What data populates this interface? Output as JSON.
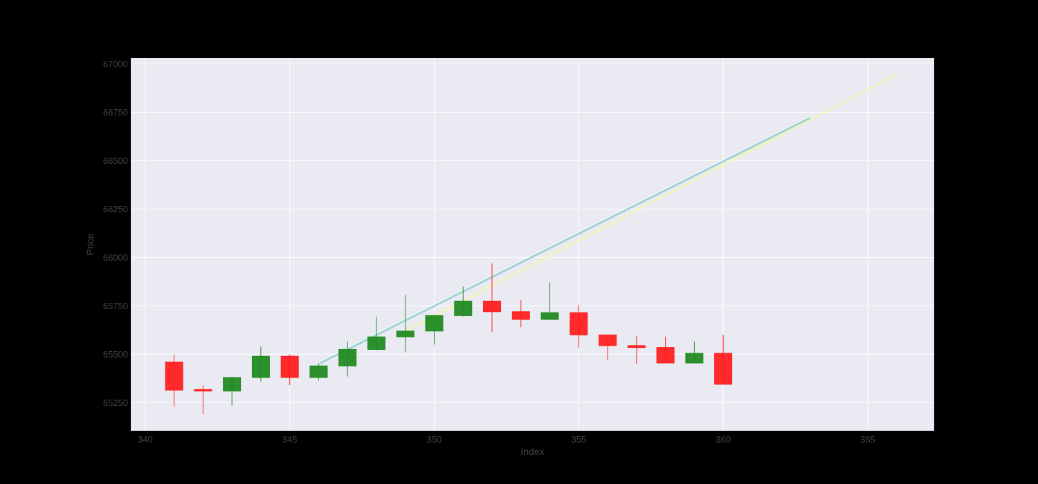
{
  "chart_data": {
    "type": "candlestick",
    "xlabel": "Index",
    "ylabel": "Price",
    "xlim": [
      339.5,
      367.3
    ],
    "ylim": [
      65105,
      67030
    ],
    "x_ticks": [
      340,
      345,
      350,
      355,
      360,
      365
    ],
    "y_ticks": [
      65250,
      65500,
      65750,
      66000,
      66250,
      66500,
      66750,
      67000
    ],
    "grid": true,
    "colors": {
      "page_bg": "#000000",
      "plot_bg": "#eaeaf2",
      "grid": "#ffffff",
      "increasing": "#228b22",
      "decreasing": "#ff2020",
      "line_cyan": "#7fd1cc",
      "line_yellow": "#f6f6a6"
    },
    "candles": [
      {
        "x": 341,
        "open": 65460,
        "high": 65500,
        "low": 65230,
        "close": 65315
      },
      {
        "x": 342,
        "open": 65318,
        "high": 65340,
        "low": 65190,
        "close": 65310
      },
      {
        "x": 343,
        "open": 65310,
        "high": 65385,
        "low": 65235,
        "close": 65380
      },
      {
        "x": 344,
        "open": 65380,
        "high": 65540,
        "low": 65360,
        "close": 65490
      },
      {
        "x": 345,
        "open": 65490,
        "high": 65500,
        "low": 65340,
        "close": 65380
      },
      {
        "x": 346,
        "open": 65380,
        "high": 65450,
        "low": 65365,
        "close": 65440
      },
      {
        "x": 347,
        "open": 65440,
        "high": 65565,
        "low": 65385,
        "close": 65525
      },
      {
        "x": 348,
        "open": 65525,
        "high": 65695,
        "low": 65520,
        "close": 65590
      },
      {
        "x": 349,
        "open": 65590,
        "high": 65805,
        "low": 65510,
        "close": 65620
      },
      {
        "x": 350,
        "open": 65620,
        "high": 65705,
        "low": 65550,
        "close": 65700
      },
      {
        "x": 351,
        "open": 65700,
        "high": 65850,
        "low": 65695,
        "close": 65775
      },
      {
        "x": 352,
        "open": 65775,
        "high": 65970,
        "low": 65615,
        "close": 65720
      },
      {
        "x": 353,
        "open": 65720,
        "high": 65780,
        "low": 65640,
        "close": 65680
      },
      {
        "x": 354,
        "open": 65680,
        "high": 65870,
        "low": 65680,
        "close": 65715
      },
      {
        "x": 355,
        "open": 65715,
        "high": 65755,
        "low": 65535,
        "close": 65600
      },
      {
        "x": 356,
        "open": 65600,
        "high": 65600,
        "low": 65470,
        "close": 65545
      },
      {
        "x": 357,
        "open": 65545,
        "high": 65595,
        "low": 65450,
        "close": 65535
      },
      {
        "x": 358,
        "open": 65535,
        "high": 65590,
        "low": 65455,
        "close": 65455
      },
      {
        "x": 359,
        "open": 65455,
        "high": 65565,
        "low": 65455,
        "close": 65505
      },
      {
        "x": 360,
        "open": 65505,
        "high": 65600,
        "low": 65345,
        "close": 65345
      }
    ],
    "lines": [
      {
        "color": "#7fd1cc",
        "x": [
          346,
          363
        ],
        "y": [
          65450,
          66720
        ]
      },
      {
        "color": "#f6f6a6",
        "x": [
          349,
          366
        ],
        "y": [
          65620,
          66945
        ]
      }
    ]
  }
}
